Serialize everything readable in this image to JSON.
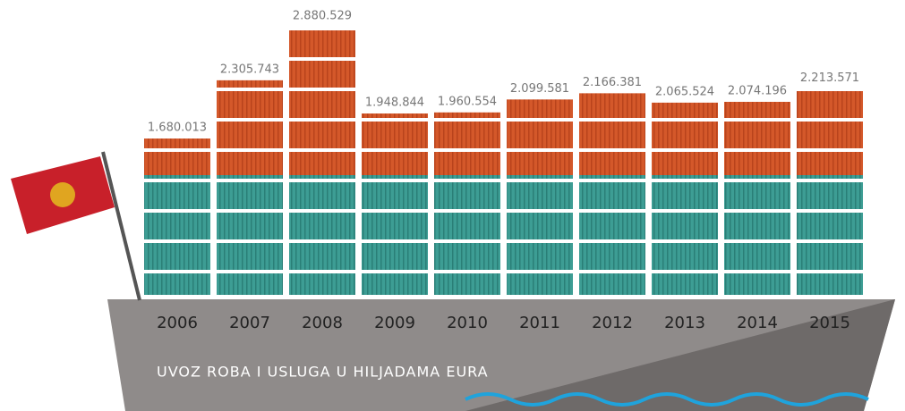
{
  "chart_data": {
    "type": "bar",
    "annotation": "UVOZ ROBA I USLUGA U HILJADAMA EURA",
    "categories": [
      "2006",
      "2007",
      "2008",
      "2009",
      "2010",
      "2011",
      "2012",
      "2013",
      "2014",
      "2015"
    ],
    "values": [
      1680013,
      2305743,
      2880529,
      1948844,
      1960554,
      2099581,
      2166381,
      2065524,
      2074196,
      2213571
    ],
    "value_labels": [
      "1.680.013",
      "2.305.743",
      "2.880.529",
      "1.948.844",
      "1.960.554",
      "2.099.581",
      "2.166.381",
      "2.065.524",
      "2.074.196",
      "2.213.571"
    ],
    "color": "#d4582a"
  }
}
